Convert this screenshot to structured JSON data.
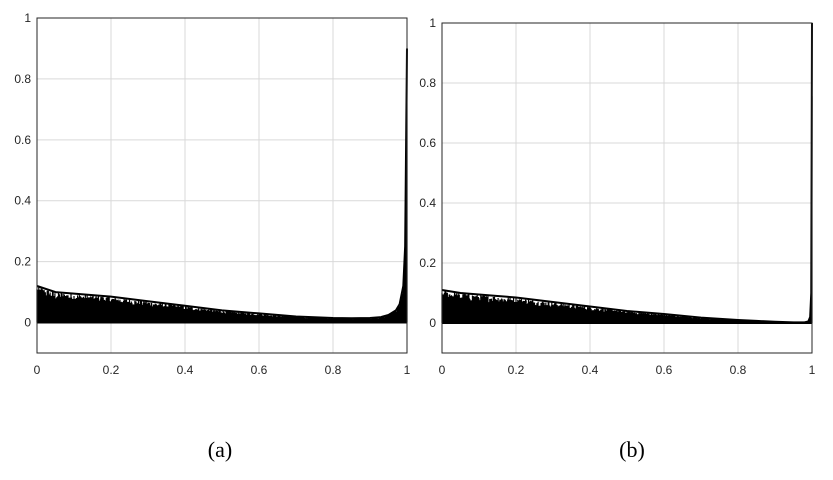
{
  "chart_data": [
    {
      "type": "area",
      "caption": "(a)",
      "xlim": [
        0,
        1
      ],
      "ylim": [
        -0.1,
        1
      ],
      "xticks": [
        "0",
        "0.2",
        "0.4",
        "0.6",
        "0.8",
        "1"
      ],
      "yticks": [
        "0",
        "0.2",
        "0.4",
        "0.6",
        "0.8",
        "1"
      ],
      "grid": true,
      "series": [
        {
          "color": "#000000",
          "envelope": {
            "x": [
              0,
              0.05,
              0.1,
              0.15,
              0.2,
              0.3,
              0.4,
              0.5,
              0.6,
              0.7,
              0.8,
              0.85,
              0.9,
              0.93,
              0.95,
              0.97,
              0.98,
              0.99,
              0.995,
              1.0
            ],
            "y": [
              0.12,
              0.1,
              0.095,
              0.09,
              0.085,
              0.07,
              0.055,
              0.04,
              0.03,
              0.02,
              0.015,
              0.014,
              0.015,
              0.018,
              0.025,
              0.04,
              0.06,
              0.12,
              0.25,
              0.9
            ]
          },
          "baseline": 0
        }
      ]
    },
    {
      "type": "area",
      "caption": "(b)",
      "xlim": [
        0,
        1
      ],
      "ylim": [
        -0.1,
        1
      ],
      "xticks": [
        "0",
        "0.2",
        "0.4",
        "0.6",
        "0.8",
        "1"
      ],
      "yticks": [
        "0",
        "0.2",
        "0.4",
        "0.6",
        "0.8",
        "1"
      ],
      "grid": true,
      "series": [
        {
          "color": "#000000",
          "envelope": {
            "x": [
              0,
              0.05,
              0.1,
              0.15,
              0.2,
              0.3,
              0.4,
              0.5,
              0.6,
              0.7,
              0.8,
              0.85,
              0.9,
              0.95,
              0.98,
              0.99,
              0.995,
              0.998,
              1.0
            ],
            "y": [
              0.11,
              0.1,
              0.095,
              0.09,
              0.085,
              0.07,
              0.055,
              0.04,
              0.03,
              0.018,
              0.01,
              0.007,
              0.004,
              0.002,
              0.002,
              0.005,
              0.02,
              0.1,
              1.0
            ]
          },
          "baseline": 0
        }
      ]
    }
  ]
}
